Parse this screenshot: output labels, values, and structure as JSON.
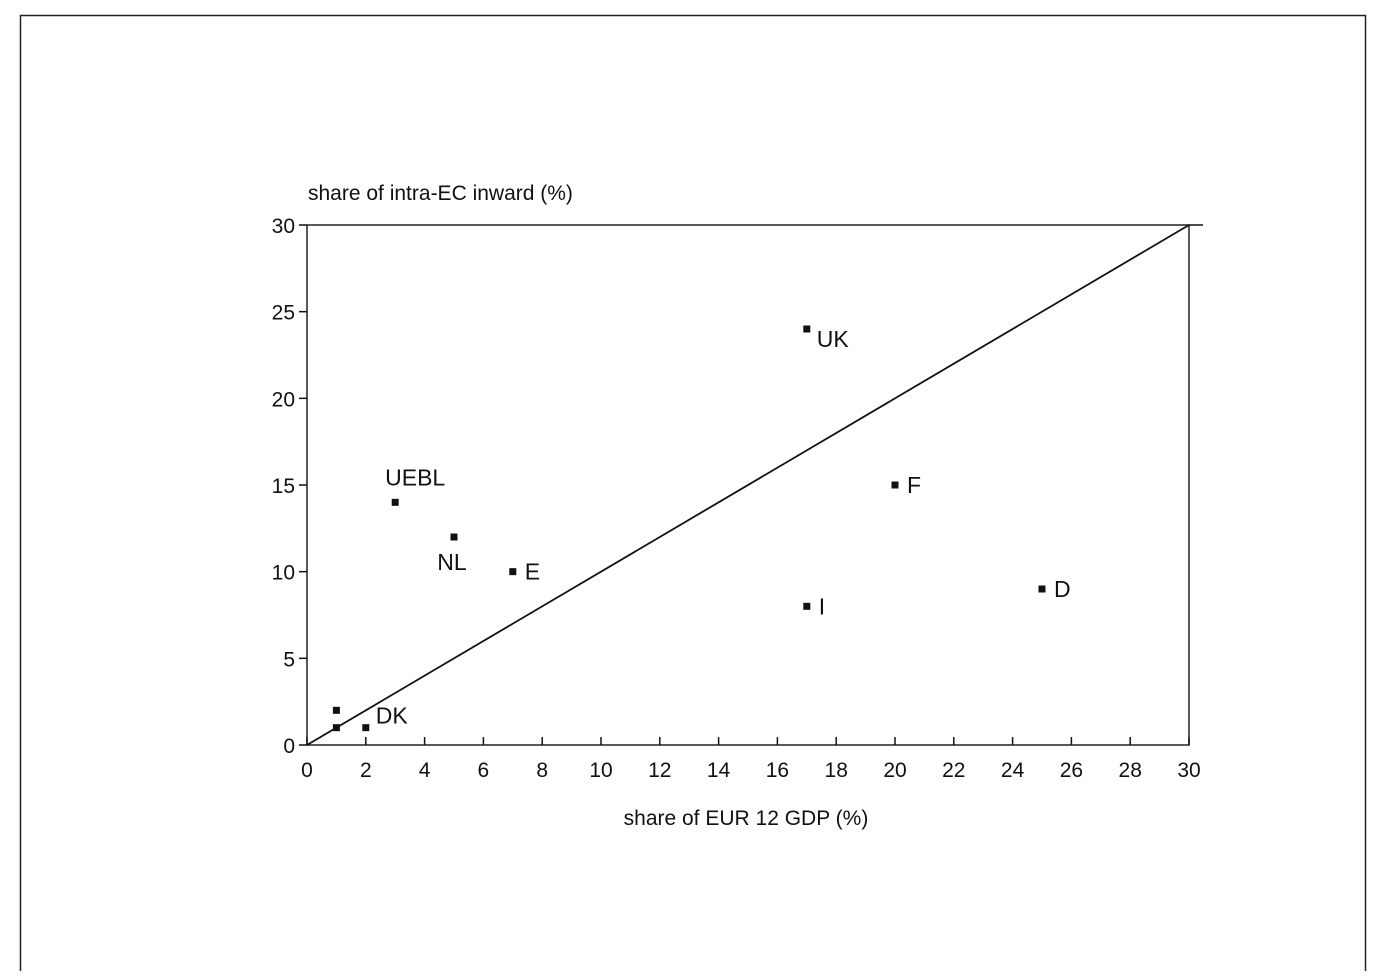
{
  "chart_data": {
    "type": "scatter",
    "title": "",
    "xlabel": "share of EUR 12 GDP (%)",
    "ylabel": "share of intra-EC inward (%)",
    "xlim": [
      0,
      30
    ],
    "ylim": [
      0,
      30
    ],
    "x_ticks": [
      "0",
      "2",
      "4",
      "6",
      "8",
      "10",
      "12",
      "14",
      "16",
      "18",
      "20",
      "22",
      "24",
      "26",
      "28",
      "30"
    ],
    "y_ticks": [
      "0",
      "5",
      "10",
      "15",
      "20",
      "25",
      "30"
    ],
    "grid": false,
    "reference_line": {
      "type": "diagonal",
      "from": [
        0,
        0
      ],
      "to": [
        30,
        30
      ]
    },
    "points": [
      {
        "label": "UK",
        "x": 17,
        "y": 24,
        "label_pos": "right-below"
      },
      {
        "label": "F",
        "x": 20,
        "y": 15,
        "label_pos": "right"
      },
      {
        "label": "UEBL",
        "x": 3,
        "y": 14,
        "label_pos": "above"
      },
      {
        "label": "NL",
        "x": 5,
        "y": 12,
        "label_pos": "below"
      },
      {
        "label": "E",
        "x": 7,
        "y": 10,
        "label_pos": "right"
      },
      {
        "label": "D",
        "x": 25,
        "y": 9,
        "label_pos": "right"
      },
      {
        "label": "I",
        "x": 17,
        "y": 8,
        "label_pos": "right"
      },
      {
        "label": "",
        "x": 1,
        "y": 2,
        "label_pos": "none"
      },
      {
        "label": "",
        "x": 1,
        "y": 1,
        "label_pos": "none"
      },
      {
        "label": "DK",
        "x": 2,
        "y": 1,
        "label_pos": "right-above"
      }
    ]
  }
}
